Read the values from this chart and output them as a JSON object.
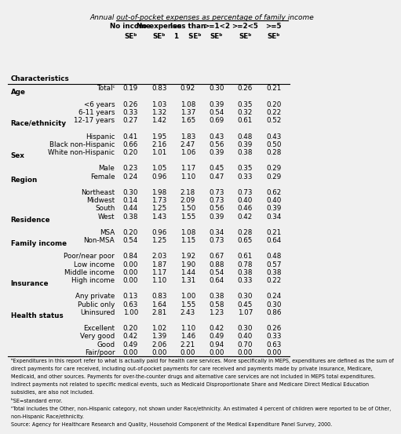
{
  "title": "Annual out-of-pocket expenses as percentage of family income",
  "col_headers": [
    "No income\nSEᵇ",
    "No expense\nSEᵇ",
    "less than\n1    SEᵇ",
    ">=1<2\nSEᵇ",
    ">=2<5\nSEᵇ",
    ">=5\nSEᵇ"
  ],
  "rows": [
    {
      "label": "Totalᶜ",
      "indent": 0,
      "category": false,
      "values": [
        "0.19",
        "0.83",
        "0.92",
        "0.30",
        "0.26",
        "0.21"
      ]
    },
    {
      "label": "Age",
      "indent": 0,
      "category": true,
      "values": [
        "",
        "",
        "",
        "",
        "",
        ""
      ]
    },
    {
      "label": "<6 years",
      "indent": 2,
      "category": false,
      "values": [
        "0.26",
        "1.03",
        "1.08",
        "0.39",
        "0.35",
        "0.20"
      ]
    },
    {
      "label": "6-11 years",
      "indent": 2,
      "category": false,
      "values": [
        "0.33",
        "1.32",
        "1.37",
        "0.54",
        "0.32",
        "0.22"
      ]
    },
    {
      "label": "12-17 years",
      "indent": 2,
      "category": false,
      "values": [
        "0.27",
        "1.42",
        "1.65",
        "0.69",
        "0.61",
        "0.52"
      ]
    },
    {
      "label": "Race/ethnicity",
      "indent": 0,
      "category": true,
      "values": [
        "",
        "",
        "",
        "",
        "",
        ""
      ]
    },
    {
      "label": "Hispanic",
      "indent": 2,
      "category": false,
      "values": [
        "0.41",
        "1.95",
        "1.83",
        "0.43",
        "0.48",
        "0.43"
      ]
    },
    {
      "label": "Black non-Hispanic",
      "indent": 2,
      "category": false,
      "values": [
        "0.66",
        "2.16",
        "2.47",
        "0.56",
        "0.39",
        "0.50"
      ]
    },
    {
      "label": "White non-Hispanic",
      "indent": 2,
      "category": false,
      "values": [
        "0.20",
        "1.01",
        "1.06",
        "0.39",
        "0.38",
        "0.28"
      ]
    },
    {
      "label": "Sex",
      "indent": 0,
      "category": true,
      "values": [
        "",
        "",
        "",
        "",
        "",
        ""
      ]
    },
    {
      "label": "Male",
      "indent": 2,
      "category": false,
      "values": [
        "0.23",
        "1.05",
        "1.17",
        "0.45",
        "0.35",
        "0.29"
      ]
    },
    {
      "label": "Female",
      "indent": 2,
      "category": false,
      "values": [
        "0.24",
        "0.96",
        "1.10",
        "0.47",
        "0.33",
        "0.29"
      ]
    },
    {
      "label": "Region",
      "indent": 0,
      "category": true,
      "values": [
        "",
        "",
        "",
        "",
        "",
        ""
      ]
    },
    {
      "label": "Northeast",
      "indent": 2,
      "category": false,
      "values": [
        "0.30",
        "1.98",
        "2.18",
        "0.73",
        "0.73",
        "0.62"
      ]
    },
    {
      "label": "Midwest",
      "indent": 2,
      "category": false,
      "values": [
        "0.14",
        "1.73",
        "2.09",
        "0.73",
        "0.40",
        "0.40"
      ]
    },
    {
      "label": "South",
      "indent": 2,
      "category": false,
      "values": [
        "0.44",
        "1.25",
        "1.50",
        "0.56",
        "0.46",
        "0.39"
      ]
    },
    {
      "label": "West",
      "indent": 2,
      "category": false,
      "values": [
        "0.38",
        "1.43",
        "1.55",
        "0.39",
        "0.42",
        "0.34"
      ]
    },
    {
      "label": "Residence",
      "indent": 0,
      "category": true,
      "values": [
        "",
        "",
        "",
        "",
        "",
        ""
      ]
    },
    {
      "label": "MSA",
      "indent": 2,
      "category": false,
      "values": [
        "0.20",
        "0.96",
        "1.08",
        "0.34",
        "0.28",
        "0.21"
      ]
    },
    {
      "label": "Non-MSA",
      "indent": 2,
      "category": false,
      "values": [
        "0.54",
        "1.25",
        "1.15",
        "0.73",
        "0.65",
        "0.64"
      ]
    },
    {
      "label": "Family income",
      "indent": 0,
      "category": true,
      "values": [
        "",
        "",
        "",
        "",
        "",
        ""
      ]
    },
    {
      "label": "Poor/near poor",
      "indent": 2,
      "category": false,
      "values": [
        "0.84",
        "2.03",
        "1.92",
        "0.67",
        "0.61",
        "0.48"
      ]
    },
    {
      "label": "Low income",
      "indent": 2,
      "category": false,
      "values": [
        "0.00",
        "1.87",
        "1.90",
        "0.88",
        "0.78",
        "0.57"
      ]
    },
    {
      "label": "Middle income",
      "indent": 2,
      "category": false,
      "values": [
        "0.00",
        "1.17",
        "1.44",
        "0.54",
        "0.38",
        "0.38"
      ]
    },
    {
      "label": "High income",
      "indent": 2,
      "category": false,
      "values": [
        "0.00",
        "1.10",
        "1.31",
        "0.64",
        "0.33",
        "0.22"
      ]
    },
    {
      "label": "Insurance",
      "indent": 0,
      "category": true,
      "values": [
        "",
        "",
        "",
        "",
        "",
        ""
      ]
    },
    {
      "label": "Any private",
      "indent": 2,
      "category": false,
      "values": [
        "0.13",
        "0.83",
        "1.00",
        "0.38",
        "0.30",
        "0.24"
      ]
    },
    {
      "label": "Public only",
      "indent": 2,
      "category": false,
      "values": [
        "0.63",
        "1.64",
        "1.55",
        "0.58",
        "0.45",
        "0.30"
      ]
    },
    {
      "label": "Uninsured",
      "indent": 2,
      "category": false,
      "values": [
        "1.00",
        "2.81",
        "2.43",
        "1.23",
        "1.07",
        "0.86"
      ]
    },
    {
      "label": "Health status",
      "indent": 0,
      "category": true,
      "values": [
        "",
        "",
        "",
        "",
        "",
        ""
      ]
    },
    {
      "label": "Excellent",
      "indent": 2,
      "category": false,
      "values": [
        "0.20",
        "1.02",
        "1.10",
        "0.42",
        "0.30",
        "0.26"
      ]
    },
    {
      "label": "Very good",
      "indent": 2,
      "category": false,
      "values": [
        "0.42",
        "1.39",
        "1.46",
        "0.49",
        "0.40",
        "0.33"
      ]
    },
    {
      "label": "Good",
      "indent": 2,
      "category": false,
      "values": [
        "0.49",
        "2.06",
        "2.21",
        "0.94",
        "0.70",
        "0.63"
      ]
    },
    {
      "label": "Fair/poor",
      "indent": 2,
      "category": false,
      "values": [
        "0.00",
        "0.00",
        "0.00",
        "0.00",
        "0.00",
        "0.00"
      ]
    }
  ],
  "footnotes": [
    "ᵃExpenditures in this report refer to what is actually paid for health care services. More specifically in MEPS, expenditures are defined as the sum of",
    "direct payments for care received, including out-of-pocket payments for care received and payments made by private insurance, Medicare,",
    "Medicaid, and other sources. Payments for over-the-counter drugs and alternative care services are not included in MEPS total expenditures.",
    "Indirect payments not related to specific medical events, such as Medicaid Disproportionate Share and Medicare Direct Medical Education",
    "subsidies, are also not included.",
    "ᵇSE=standard error.",
    "ᶜTotal includes the Other, non-Hispanic category, not shown under Race/ethnicity. An estimated 4 percent of children were reported to be of Other,",
    "non-Hispanic Race/ethnicity.",
    "Source: Agency for Healthcare Research and Quality, Household Component of the Medical Expenditure Panel Survey, 2000."
  ],
  "bg_color": "#f0f0f0"
}
